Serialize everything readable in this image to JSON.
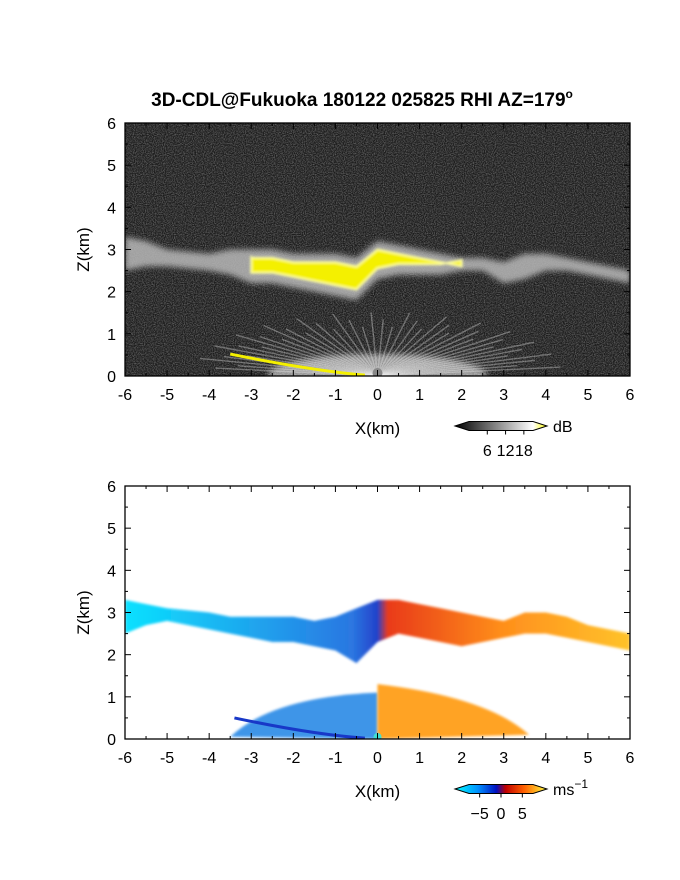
{
  "title": "3D-CDL@Fukuoka 180122 025825 RHI AZ=179",
  "title_suffix": "o",
  "colors": {
    "yellow": "#ffff00",
    "cyan": "#00e5ff",
    "blue": "#1040e8",
    "red": "#ff3010",
    "orange": "#ff9a10"
  },
  "chart_data": [
    {
      "type": "heatmap",
      "name": "power-panel",
      "xlabel": "X(km)",
      "ylabel": "Z(km)",
      "xlim": [
        -6,
        6
      ],
      "ylim": [
        0,
        6
      ],
      "xticks": [
        "-6",
        "-5",
        "-4",
        "-3",
        "-2",
        "-1",
        "0",
        "1",
        "2",
        "3",
        "4",
        "5",
        "6"
      ],
      "yticks": [
        "0",
        "1",
        "2",
        "3",
        "4",
        "5",
        "6"
      ],
      "colorbar": {
        "label": "dB",
        "ticks": [
          "6",
          "12",
          "18"
        ],
        "values": [
          6,
          12,
          18
        ]
      },
      "cloud_layer": {
        "x": [
          -6,
          -5.5,
          -5,
          -4,
          -3.5,
          -3,
          -2.5,
          -2,
          -1.5,
          -1,
          -0.5,
          0,
          0.5,
          1,
          1.5,
          2,
          2.5,
          3,
          3.5,
          4,
          4.5,
          5,
          5.5,
          6
        ],
        "base": [
          2.5,
          2.6,
          2.6,
          2.5,
          2.4,
          2.2,
          2.2,
          2.1,
          2.0,
          1.9,
          1.8,
          2.3,
          2.4,
          2.4,
          2.4,
          2.5,
          2.5,
          2.2,
          2.3,
          2.5,
          2.5,
          2.4,
          2.3,
          2.2
        ],
        "top": [
          3.3,
          3.2,
          3.0,
          2.9,
          3.0,
          3.0,
          3.0,
          2.9,
          2.9,
          2.9,
          2.8,
          3.2,
          3.1,
          3.0,
          2.9,
          2.8,
          2.8,
          2.7,
          2.9,
          2.9,
          2.8,
          2.7,
          2.6,
          2.5
        ]
      },
      "strong_echo_region_x": [
        -3.0,
        2.2
      ]
    },
    {
      "type": "heatmap",
      "name": "velocity-panel",
      "xlabel": "X(km)",
      "ylabel": "Z(km)",
      "xlim": [
        -6,
        6
      ],
      "ylim": [
        0,
        6
      ],
      "xticks": [
        "-6",
        "-5",
        "-4",
        "-3",
        "-2",
        "-1",
        "0",
        "1",
        "2",
        "3",
        "4",
        "5",
        "6"
      ],
      "yticks": [
        "0",
        "1",
        "2",
        "3",
        "4",
        "5",
        "6"
      ],
      "colorbar": {
        "label": "ms",
        "label_exp": "−1",
        "ticks": [
          "−5",
          "0",
          "5"
        ],
        "values": [
          -5,
          0,
          5
        ]
      },
      "cloud_layer": {
        "x": [
          -6,
          -5.5,
          -5,
          -4,
          -3.5,
          -3,
          -2.5,
          -2,
          -1.5,
          -1,
          -0.5,
          0,
          0.5,
          1,
          1.5,
          2,
          2.5,
          3,
          3.5,
          4,
          4.5,
          5,
          5.5,
          6
        ],
        "base": [
          2.5,
          2.7,
          2.8,
          2.6,
          2.5,
          2.4,
          2.3,
          2.3,
          2.2,
          2.1,
          1.8,
          2.3,
          2.5,
          2.4,
          2.3,
          2.2,
          2.3,
          2.4,
          2.5,
          2.5,
          2.4,
          2.3,
          2.2,
          2.1
        ],
        "top": [
          3.3,
          3.2,
          3.1,
          3.0,
          2.9,
          2.9,
          2.9,
          2.9,
          2.8,
          2.9,
          3.1,
          3.3,
          3.3,
          3.2,
          3.1,
          3.0,
          2.9,
          2.8,
          3.0,
          3.0,
          2.9,
          2.7,
          2.6,
          2.5
        ]
      },
      "low_fan_x": [
        -3.5,
        3.6
      ],
      "low_fan_top": 1.0
    }
  ]
}
